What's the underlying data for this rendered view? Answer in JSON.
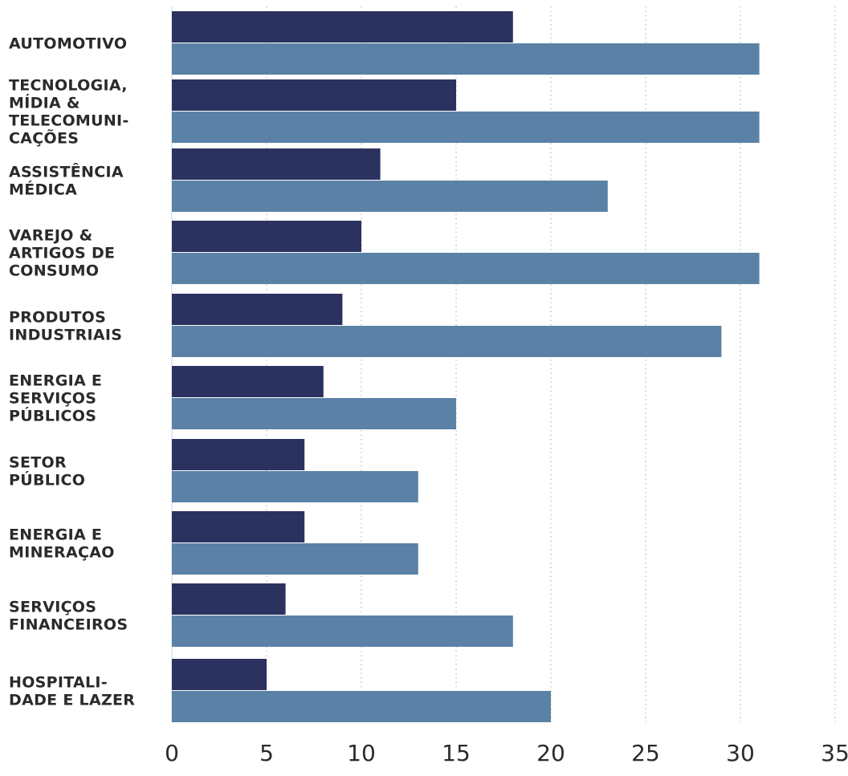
{
  "chart_data": {
    "type": "bar",
    "orientation": "horizontal",
    "title": "",
    "xlabel": "",
    "ylabel": "",
    "xlim": [
      0,
      35
    ],
    "xticks": [
      0,
      5,
      10,
      15,
      20,
      25,
      30,
      35
    ],
    "grid": "vertical dotted",
    "categories": [
      "AUTOMOTIVO",
      "TECNOLOGIA, MÍDIA & TELECOMUNI- CAÇÕES",
      "ASSISTÊNCIA MÉDICA",
      "VAREJO & ARTIGOS DE CONSUMO",
      "PRODUTOS INDUSTRIAIS",
      "ENERGIA E SERVIÇOS PÚBLICOS",
      "SETOR PÚBLICO",
      "ENERGIA E MINERAÇAO",
      "SERVIÇOS FINANCEIROS",
      "HOSPITALI- DADE E LAZER"
    ],
    "category_lines": [
      [
        "AUTOMOTIVO"
      ],
      [
        "TECNOLOGIA,",
        "MÍDIA &",
        "TELECOMUNI-",
        "CAÇÕES"
      ],
      [
        "ASSISTÊNCIA",
        "MÉDICA"
      ],
      [
        "VAREJO &",
        "ARTIGOS DE",
        "CONSUMO"
      ],
      [
        "PRODUTOS",
        "INDUSTRIAIS"
      ],
      [
        "ENERGIA E",
        "SERVIÇOS",
        "PÚBLICOS"
      ],
      [
        "SETOR",
        "PÚBLICO"
      ],
      [
        "ENERGIA E",
        "MINERAÇAO"
      ],
      [
        "SERVIÇOS",
        "FINANCEIROS"
      ],
      [
        "HOSPITALI-",
        "DADE E LAZER"
      ]
    ],
    "series": [
      {
        "color": "#2b3260",
        "values": [
          18,
          15,
          11,
          10,
          9,
          8,
          7,
          7,
          6,
          5
        ]
      },
      {
        "color": "#5b82a6",
        "values": [
          31,
          31,
          23,
          31,
          29,
          15,
          13,
          13,
          18,
          20
        ]
      }
    ]
  }
}
